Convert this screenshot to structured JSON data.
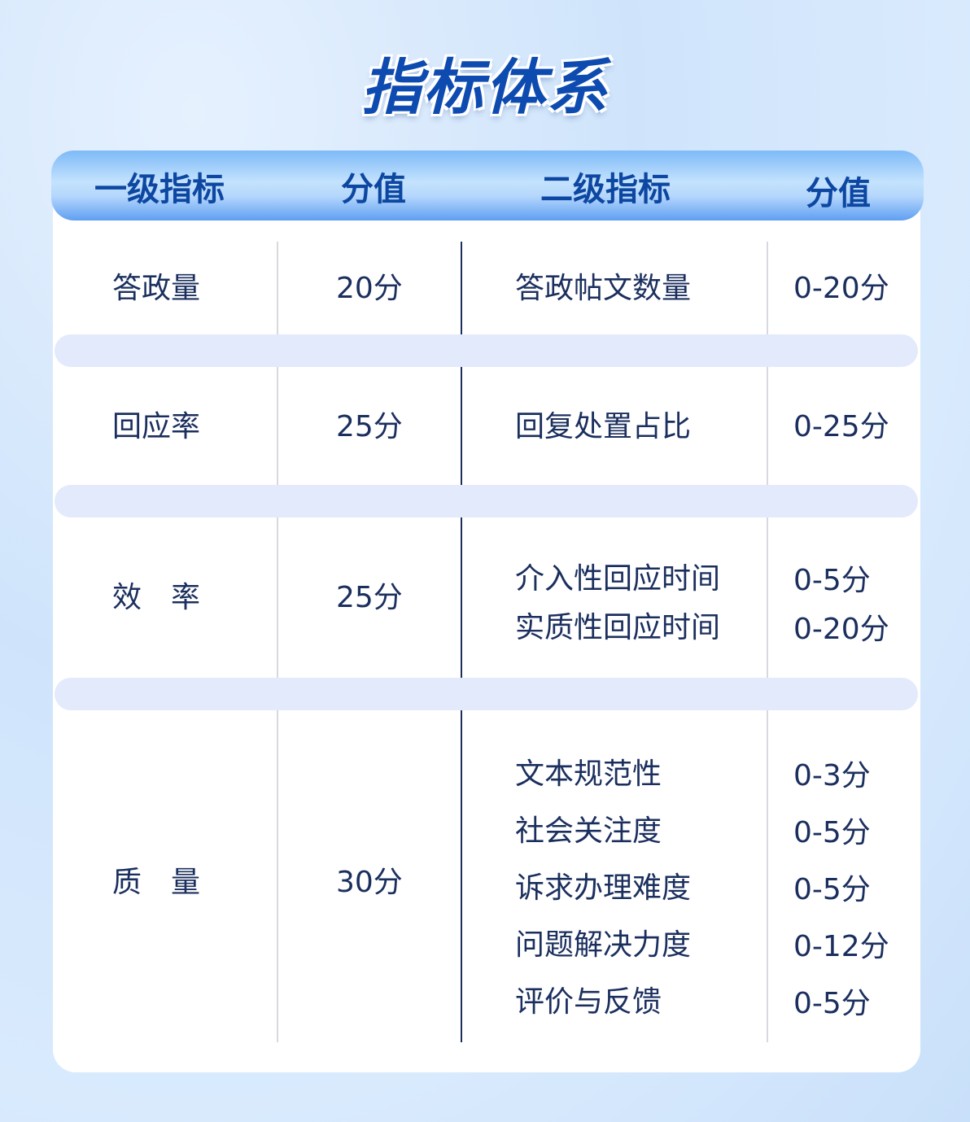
{
  "title": "指标体系",
  "headers": [
    "一级指标",
    "分值",
    "二级指标",
    "分值"
  ],
  "rows": [
    {
      "primary": "答政量",
      "score": "20分",
      "secondary": [
        "答政帖文数量"
      ],
      "sub_scores": [
        "0-20分"
      ]
    },
    {
      "primary": "回应率",
      "score": "25分",
      "secondary": [
        "回复处置占比"
      ],
      "sub_scores": [
        "0-25分"
      ]
    },
    {
      "primary": "效　率",
      "score": "25分",
      "secondary": [
        "介入性回应时间",
        "实质性回应时间"
      ],
      "sub_scores": [
        "0-5分",
        "0-20分"
      ]
    },
    {
      "primary": "质　量",
      "score": "30分",
      "secondary": [
        "文本规范性",
        "社会关注度",
        "诉求办理难度",
        "问题解决力度",
        "评价与反馈"
      ],
      "sub_scores": [
        "0-3分",
        "0-5分",
        "0-5分",
        "0-12分",
        "0-5分"
      ]
    }
  ],
  "colors": {
    "header_text": "#0d47a1",
    "body_text": "#1b2f5e",
    "band": "#e3eafc"
  }
}
